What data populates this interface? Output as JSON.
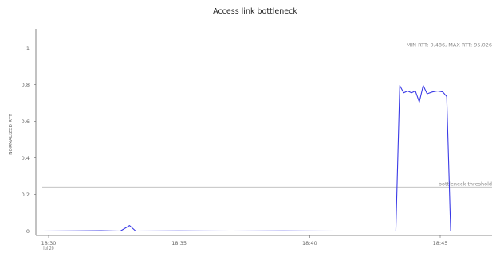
{
  "chart_data": {
    "type": "line",
    "title": "Access link bottleneck",
    "xlabel": "",
    "ylabel": "NORMALIZED RTT",
    "x_ticks": [
      {
        "value": "18:30",
        "sub": "Jul 20"
      },
      {
        "value": "18:35",
        "sub": ""
      },
      {
        "value": "18:40",
        "sub": ""
      },
      {
        "value": "18:45",
        "sub": ""
      }
    ],
    "xlim": [
      "18:30:00",
      "18:46:55"
    ],
    "y_ticks": [
      "0",
      "0.2",
      "0.4",
      "0.6",
      "0.8",
      "1"
    ],
    "ylim": [
      0,
      1.1
    ],
    "grid": false,
    "series": [
      {
        "color": "#3a3ae6",
        "points": [
          [
            "18:29:45",
            0.0
          ],
          [
            "18:31:00",
            0.001
          ],
          [
            "18:32:00",
            0.002
          ],
          [
            "18:32:45",
            0.0
          ],
          [
            "18:33:06",
            0.03
          ],
          [
            "18:33:20",
            0.0
          ],
          [
            "18:35:00",
            0.001
          ],
          [
            "18:37:00",
            0.0
          ],
          [
            "18:39:00",
            0.001
          ],
          [
            "18:41:00",
            0.0
          ],
          [
            "18:43:00",
            0.0
          ],
          [
            "18:43:18",
            0.0
          ],
          [
            "18:43:27",
            0.795
          ],
          [
            "18:43:36",
            0.755
          ],
          [
            "18:43:45",
            0.765
          ],
          [
            "18:43:54",
            0.755
          ],
          [
            "18:44:03",
            0.765
          ],
          [
            "18:44:12",
            0.705
          ],
          [
            "18:44:21",
            0.795
          ],
          [
            "18:44:30",
            0.75
          ],
          [
            "18:44:42",
            0.76
          ],
          [
            "18:44:54",
            0.765
          ],
          [
            "18:45:06",
            0.76
          ],
          [
            "18:45:15",
            0.735
          ],
          [
            "18:45:24",
            0.0
          ],
          [
            "18:46:55",
            0.0
          ]
        ]
      }
    ],
    "reference_lines": [
      {
        "y": 1.0,
        "label": "MIN RTT: 0.486, MAX RTT: 95.026",
        "color": "#bbbbbb"
      },
      {
        "y": 0.24,
        "label": "bottleneck threshold",
        "color": "#bbbbbb"
      }
    ]
  }
}
